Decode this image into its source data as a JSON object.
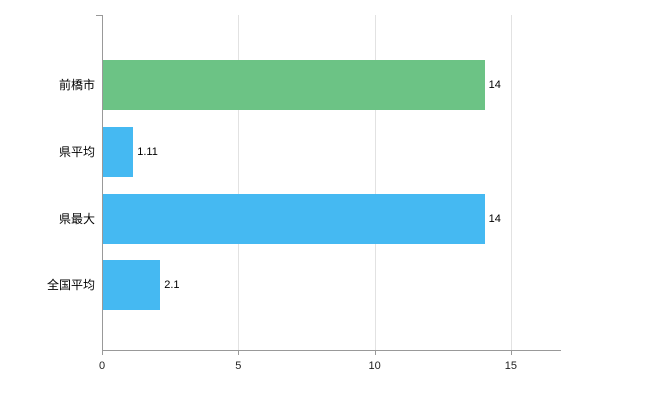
{
  "chart_data": {
    "type": "bar",
    "orientation": "horizontal",
    "title": "",
    "xlabel": "",
    "ylabel": "",
    "categories": [
      "前橋市",
      "県平均",
      "県最大",
      "全国平均"
    ],
    "values": [
      14,
      1.11,
      14,
      2.1
    ],
    "value_labels": [
      "14",
      "1.11",
      "14",
      "2.1"
    ],
    "bar_colors": [
      "#6cc385",
      "#45b9f2",
      "#45b9f2",
      "#45b9f2"
    ],
    "x_ticks": [
      0,
      5,
      10,
      15
    ],
    "x_tick_labels": [
      "0",
      "5",
      "10",
      "15"
    ],
    "xlim": [
      0,
      16.8
    ],
    "grid": "vertical-gridlines-only",
    "legend": "none",
    "background": "#ffffff"
  },
  "style": {
    "axis_color": "#999999",
    "grid_color": "#e2e2e2",
    "label_color": "#000000"
  }
}
